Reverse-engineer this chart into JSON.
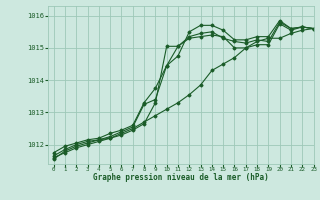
{
  "title": "Graphe pression niveau de la mer (hPa)",
  "background_color": "#cde8df",
  "grid_color": "#9ec8b8",
  "line_color": "#1a5c28",
  "xlim": [
    -0.5,
    23
  ],
  "ylim": [
    1011.4,
    1016.3
  ],
  "yticks": [
    1012,
    1013,
    1014,
    1015,
    1016
  ],
  "xticks": [
    0,
    1,
    2,
    3,
    4,
    5,
    6,
    7,
    8,
    9,
    10,
    11,
    12,
    13,
    14,
    15,
    16,
    17,
    18,
    19,
    20,
    21,
    22,
    23
  ],
  "series": [
    [
      1011.55,
      1011.8,
      1011.95,
      1012.05,
      1012.15,
      1012.2,
      1012.3,
      1012.45,
      1012.65,
      1013.3,
      1015.05,
      1015.05,
      1015.3,
      1015.35,
      1015.4,
      1015.35,
      1015.0,
      1015.0,
      1015.1,
      1015.1,
      1015.75,
      1015.55,
      1015.65,
      1015.6
    ],
    [
      1011.65,
      1011.85,
      1012.0,
      1012.1,
      1012.15,
      1012.25,
      1012.4,
      1012.55,
      1013.25,
      1013.4,
      1014.45,
      1015.05,
      1015.35,
      1015.45,
      1015.5,
      1015.3,
      1015.2,
      1015.15,
      1015.25,
      1015.2,
      1015.8,
      1015.6,
      1015.65,
      1015.6
    ],
    [
      1011.75,
      1011.95,
      1012.05,
      1012.15,
      1012.2,
      1012.35,
      1012.45,
      1012.6,
      1013.3,
      1013.75,
      1014.45,
      1014.75,
      1015.5,
      1015.7,
      1015.7,
      1015.55,
      1015.25,
      1015.25,
      1015.35,
      1015.35,
      1015.85,
      1015.6,
      1015.65,
      1015.6
    ],
    [
      1011.6,
      1011.75,
      1011.9,
      1012.0,
      1012.1,
      1012.2,
      1012.35,
      1012.5,
      1012.7,
      1012.9,
      1013.1,
      1013.3,
      1013.55,
      1013.85,
      1014.3,
      1014.5,
      1014.7,
      1015.0,
      1015.2,
      1015.3,
      1015.3,
      1015.45,
      1015.55,
      1015.6
    ]
  ]
}
